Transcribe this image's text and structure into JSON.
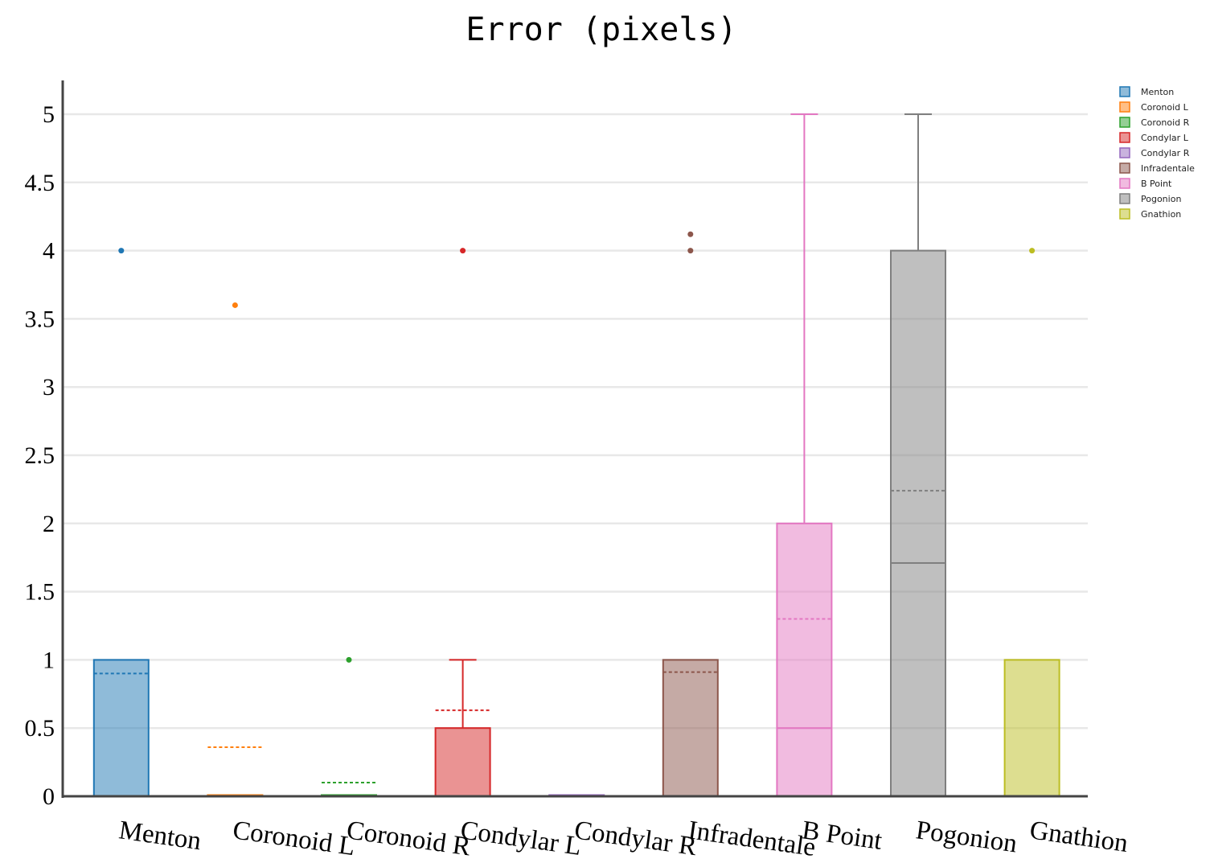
{
  "chart_data": {
    "type": "box",
    "title": "Error (pixels)",
    "xlabel": "",
    "ylabel": "",
    "ylim": [
      0,
      5.25
    ],
    "yticks": [
      "0",
      "0.5",
      "1",
      "1.5",
      "2",
      "2.5",
      "3",
      "3.5",
      "4",
      "4.5",
      "5"
    ],
    "grid": true,
    "legend": "top-right",
    "categories": [
      "Menton",
      "Coronoid L",
      "Coronoid R",
      "Condylar L",
      "Condylar R",
      "Infradentale",
      "B Point",
      "Pogonion",
      "Gnathion"
    ],
    "series": [
      {
        "name": "Menton",
        "color": "#1f77b4",
        "q1": 0,
        "median": 0,
        "q3": 1,
        "mean": 0.9,
        "whisker_low": 0,
        "whisker_high": 1,
        "outliers": [
          4
        ]
      },
      {
        "name": "Coronoid L",
        "color": "#ff7f0e",
        "q1": 0,
        "median": 0,
        "q3": 0,
        "mean": 0.36,
        "whisker_low": 0,
        "whisker_high": 0,
        "outliers": [
          3.6
        ]
      },
      {
        "name": "Coronoid R",
        "color": "#2ca02c",
        "q1": 0,
        "median": 0,
        "q3": 0,
        "mean": 0.1,
        "whisker_low": 0,
        "whisker_high": 0,
        "outliers": [
          1
        ]
      },
      {
        "name": "Condylar L",
        "color": "#d62728",
        "q1": 0,
        "median": 0,
        "q3": 0.5,
        "mean": 0.63,
        "whisker_low": 0,
        "whisker_high": 1,
        "outliers": [
          4
        ]
      },
      {
        "name": "Condylar R",
        "color": "#9467bd",
        "q1": 0,
        "median": 0,
        "q3": 0,
        "mean": 0,
        "whisker_low": 0,
        "whisker_high": 0,
        "outliers": []
      },
      {
        "name": "Infradentale",
        "color": "#8c564b",
        "q1": 0,
        "median": 0,
        "q3": 1,
        "mean": 0.91,
        "whisker_low": 0,
        "whisker_high": 1,
        "outliers": [
          4,
          4.12
        ]
      },
      {
        "name": "B Point",
        "color": "#e377c2",
        "q1": 0,
        "median": 0.5,
        "q3": 2,
        "mean": 1.3,
        "whisker_low": 0,
        "whisker_high": 5,
        "outliers": []
      },
      {
        "name": "Pogonion",
        "color": "#7f7f7f",
        "q1": 0,
        "median": 1.71,
        "q3": 4,
        "mean": 2.24,
        "whisker_low": 0,
        "whisker_high": 5,
        "outliers": []
      },
      {
        "name": "Gnathion",
        "color": "#bcbd22",
        "q1": 0,
        "median": 0,
        "q3": 1,
        "mean": 0,
        "whisker_low": 0,
        "whisker_high": 1,
        "outliers": [
          4
        ]
      }
    ]
  }
}
